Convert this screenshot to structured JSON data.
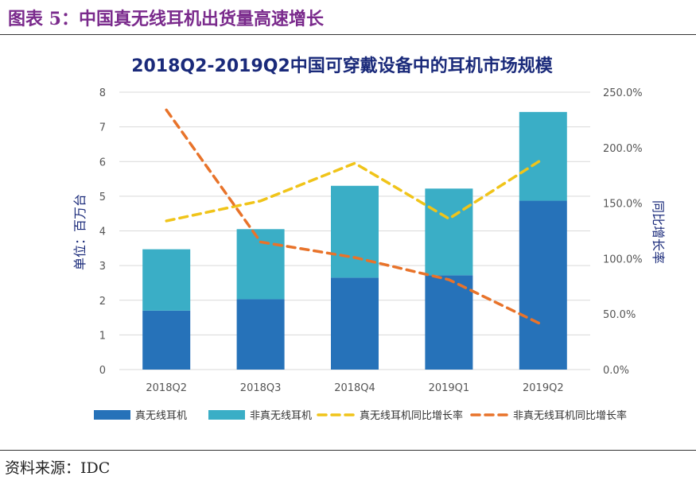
{
  "figure_title": "图表 5：中国真无线耳机出货量高速增长",
  "source": "资料来源：IDC",
  "chart_data": {
    "type": "bar",
    "stacked": true,
    "title": "2018Q2-2019Q2中国可穿戴设备中的耳机市场规模",
    "categories": [
      "2018Q2",
      "2018Q3",
      "2018Q4",
      "2019Q1",
      "2019Q2"
    ],
    "ylabel": "单位：百万台",
    "y2label": "同比增长率",
    "ylim": [
      0,
      8
    ],
    "yticks": [
      "0",
      "1",
      "2",
      "3",
      "4",
      "5",
      "6",
      "7",
      "8"
    ],
    "y2lim": [
      0,
      250
    ],
    "y2ticks": [
      "0.0%",
      "50.0%",
      "100.0%",
      "150.0%",
      "200.0%",
      "250.0%"
    ],
    "series": [
      {
        "name": "真无线耳机",
        "kind": "bar",
        "axis": "left",
        "color": "#2672b9",
        "values": [
          1.7,
          2.03,
          2.65,
          2.72,
          4.87
        ]
      },
      {
        "name": "非真无线耳机",
        "kind": "bar",
        "axis": "left",
        "color": "#3aaec6",
        "values": [
          1.77,
          2.02,
          2.65,
          2.5,
          2.56
        ]
      },
      {
        "name": "真无线耳机同比增长率",
        "kind": "line",
        "axis": "right",
        "color": "#f0c419",
        "values": [
          134,
          152,
          186,
          136,
          190
        ]
      },
      {
        "name": "非真无线耳机同比增长率",
        "kind": "line",
        "axis": "right",
        "color": "#e8732a",
        "values": [
          234,
          115,
          101,
          81,
          40
        ]
      }
    ]
  }
}
